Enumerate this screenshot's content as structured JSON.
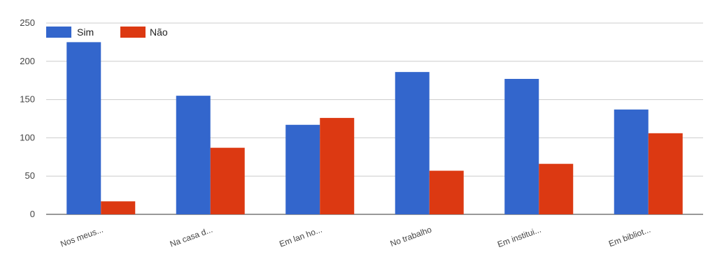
{
  "chart_data": {
    "type": "bar",
    "categories": [
      "Nos meus...",
      "Na casa d...",
      "Em lan ho...",
      "No trabalho",
      "Em institui...",
      "Em bibliot..."
    ],
    "series": [
      {
        "name": "Sim",
        "color": "#3366cc",
        "values": [
          225,
          155,
          117,
          186,
          177,
          137
        ]
      },
      {
        "name": "Não",
        "color": "#dc3912",
        "values": [
          17,
          87,
          126,
          57,
          66,
          106
        ]
      }
    ],
    "ylim": [
      0,
      250
    ],
    "yticks": [
      0,
      50,
      100,
      150,
      200,
      250
    ],
    "grid": true,
    "legend_position": "top-left",
    "title": "",
    "xlabel": "",
    "ylabel": ""
  }
}
